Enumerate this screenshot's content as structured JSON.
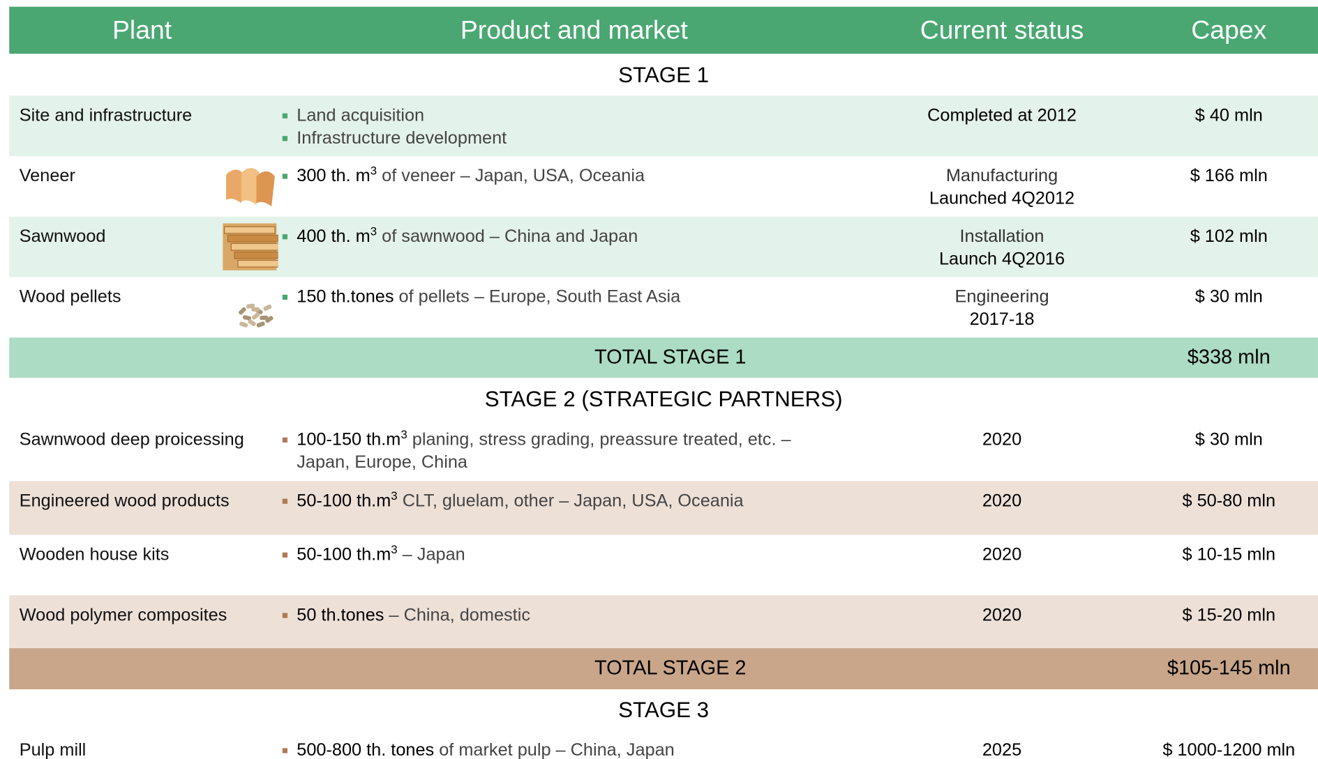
{
  "header": [
    "Plant",
    "Product and market",
    "Current status",
    "Capex"
  ],
  "stages": [
    {
      "title": "STAGE 1",
      "rows": [
        {
          "plant": "Site and infrastructure",
          "product": [
            {
              "text": "Land acquisition"
            },
            {
              "text": "Infrastructure development"
            }
          ],
          "status": [
            "Completed at 2012"
          ],
          "capex": "$ 40 mln"
        },
        {
          "plant": "Veneer",
          "product": [
            {
              "bold": "300 th. m",
              "sup": "3",
              "text": " of veneer – Japan, USA, Oceania"
            }
          ],
          "status": [
            "Manufacturing",
            "Launched 4Q2012"
          ],
          "capex": "$ 166 mln"
        },
        {
          "plant": "Sawnwood",
          "product": [
            {
              "bold": "400 th. m",
              "sup": "3",
              "text": " of sawnwood – China and Japan"
            }
          ],
          "status": [
            "Installation",
            "Launch 4Q2016"
          ],
          "capex": "$ 102 mln"
        },
        {
          "plant": "Wood pellets",
          "product": [
            {
              "bold": "150 th.tones",
              "text": " of pellets – Europe, South East Asia"
            }
          ],
          "status": [
            "Engineering",
            "2017-18"
          ],
          "capex": "$ 30 mln"
        }
      ],
      "total": {
        "label": "TOTAL STAGE 1",
        "capex": "$338 mln"
      }
    },
    {
      "title": "STAGE 2 (STRATEGIC PARTNERS)",
      "rows": [
        {
          "plant": "Sawnwood deep proicessing",
          "product": [
            {
              "bold": "100-150 th.m",
              "sup": "3",
              "text": " planing, stress grading, preassure treated, etc. – Japan, Europe, China"
            }
          ],
          "status": [
            "2020"
          ],
          "capex": "$ 30 mln"
        },
        {
          "plant": "Engineered wood products",
          "product": [
            {
              "bold": "50-100 th.m",
              "sup": "3",
              "text": " CLT, gluelam, other – Japan, USA, Oceania"
            }
          ],
          "status": [
            "2020"
          ],
          "capex": "$ 50-80 mln"
        },
        {
          "plant": "Wooden house kits",
          "product": [
            {
              "bold": "50-100 th.m",
              "sup": "3",
              "text": " – Japan"
            }
          ],
          "status": [
            "2020"
          ],
          "capex": "$ 10-15 mln"
        },
        {
          "plant": "Wood polymer composites",
          "product": [
            {
              "bold": "50 th.tones",
              "text": " – China, domestic"
            }
          ],
          "status": [
            "2020"
          ],
          "capex": "$ 15-20 mln"
        }
      ],
      "total": {
        "label": "TOTAL STAGE 2",
        "capex": "$105-145 mln"
      }
    },
    {
      "title": "STAGE 3",
      "rows": [
        {
          "plant": "Pulp mill",
          "product": [
            {
              "bold": "500-800 th. tones",
              "text": " of market pulp – China, Japan"
            }
          ],
          "status": [
            "2025"
          ],
          "capex": "$ 1000-1200 mln"
        }
      ]
    }
  ]
}
